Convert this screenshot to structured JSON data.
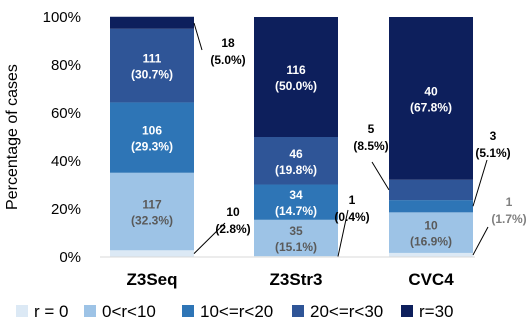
{
  "chart_data": {
    "type": "bar",
    "stacked": "percent",
    "ylabel": "Percentage of cases",
    "ylim": [
      0,
      100
    ],
    "yticks": [
      "0%",
      "20%",
      "40%",
      "60%",
      "80%",
      "100%"
    ],
    "categories": [
      "Z3Seq",
      "Z3Str3",
      "CVC4"
    ],
    "grid": false,
    "legend_position": "bottom",
    "series": [
      {
        "name": "r = 0",
        "color": "#dce9f5",
        "counts": [
          10,
          1,
          1
        ],
        "percents": [
          2.8,
          0.4,
          1.7
        ],
        "count_labels": [
          "10",
          "1",
          "1"
        ],
        "percent_labels": [
          "(2.8%)",
          "(0.4%)",
          "(1.7%)"
        ]
      },
      {
        "name": "0<r<10",
        "color": "#9dc3e6",
        "counts": [
          117,
          35,
          10
        ],
        "percents": [
          32.3,
          15.1,
          16.9
        ],
        "count_labels": [
          "117",
          "35",
          "10"
        ],
        "percent_labels": [
          "(32.3%)",
          "(15.1%)",
          "(16.9%)"
        ]
      },
      {
        "name": "10<=r<20",
        "color": "#2e75b6",
        "counts": [
          106,
          34,
          3
        ],
        "percents": [
          29.3,
          14.7,
          5.1
        ],
        "count_labels": [
          "106",
          "34",
          "3"
        ],
        "percent_labels": [
          "(29.3%)",
          "(14.7%)",
          "(5.1%)"
        ]
      },
      {
        "name": "20<=r<30",
        "color": "#2f5597",
        "counts": [
          111,
          46,
          5
        ],
        "percents": [
          30.7,
          19.8,
          8.5
        ],
        "count_labels": [
          "111",
          "46",
          "5"
        ],
        "percent_labels": [
          "(30.7%)",
          "(19.8%)",
          "(8.5%)"
        ]
      },
      {
        "name": "r=30",
        "color": "#0d1f5c",
        "counts": [
          18,
          116,
          40
        ],
        "percents": [
          5.0,
          50.0,
          67.8
        ],
        "count_labels": [
          "18",
          "116",
          "40"
        ],
        "percent_labels": [
          "(5.0%)",
          "(50.0%)",
          "(67.8%)"
        ]
      }
    ]
  }
}
